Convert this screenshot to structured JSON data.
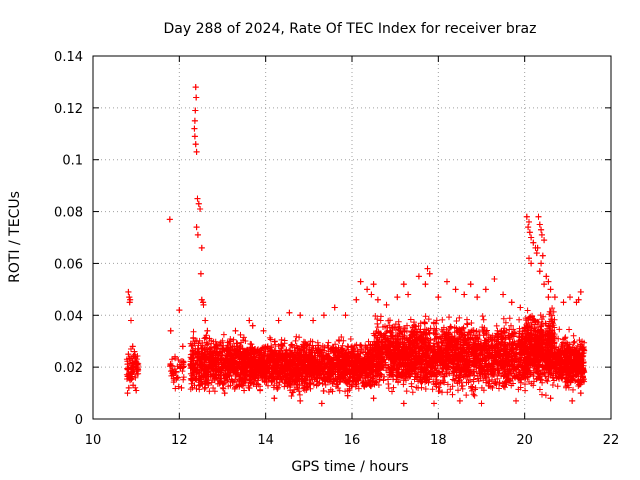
{
  "chart_data": {
    "type": "scatter",
    "title": "Day 288 of 2024, Rate Of TEC Index for receiver braz",
    "xlabel": "GPS time / hours",
    "ylabel": "ROTI / TECUs",
    "xlim": [
      10,
      22
    ],
    "ylim": [
      0,
      0.14
    ],
    "x_ticks": [
      10,
      12,
      14,
      16,
      18,
      20,
      22
    ],
    "x_tick_labels": [
      "10",
      "12",
      "14",
      "16",
      "18",
      "20",
      "22"
    ],
    "y_ticks": [
      0,
      0.02,
      0.04,
      0.06,
      0.08,
      0.1,
      0.12,
      0.14
    ],
    "y_tick_labels": [
      "0",
      "0.02",
      "0.04",
      "0.06",
      "0.08",
      "0.1",
      "0.12",
      "0.14"
    ],
    "grid": true,
    "marker": "+",
    "marker_color": "#ff0000",
    "series": [
      {
        "name": "ROTI",
        "points": [
          [
            10.82,
            0.049
          ],
          [
            10.84,
            0.047
          ],
          [
            10.86,
            0.046
          ],
          [
            10.88,
            0.038
          ],
          [
            10.85,
            0.045
          ],
          [
            10.8,
            0.01
          ],
          [
            10.83,
            0.012
          ],
          [
            10.86,
            0.015
          ],
          [
            10.9,
            0.018
          ],
          [
            10.95,
            0.02
          ],
          [
            11.0,
            0.022
          ],
          [
            10.82,
            0.025
          ],
          [
            10.88,
            0.027
          ],
          [
            10.92,
            0.028
          ],
          [
            10.98,
            0.024
          ],
          [
            11.02,
            0.019
          ],
          [
            10.85,
            0.016
          ],
          [
            10.93,
            0.013
          ],
          [
            11.0,
            0.011
          ],
          [
            10.96,
            0.026
          ],
          [
            11.78,
            0.077
          ],
          [
            11.8,
            0.034
          ],
          [
            11.85,
            0.018
          ],
          [
            11.9,
            0.024
          ],
          [
            11.95,
            0.016
          ],
          [
            12.0,
            0.042
          ],
          [
            12.02,
            0.02
          ],
          [
            12.05,
            0.012
          ],
          [
            12.08,
            0.028
          ],
          [
            12.1,
            0.022
          ],
          [
            12.38,
            0.128
          ],
          [
            12.39,
            0.124
          ],
          [
            12.37,
            0.119
          ],
          [
            12.36,
            0.115
          ],
          [
            12.35,
            0.112
          ],
          [
            12.36,
            0.109
          ],
          [
            12.38,
            0.106
          ],
          [
            12.4,
            0.103
          ],
          [
            12.42,
            0.085
          ],
          [
            12.45,
            0.083
          ],
          [
            12.48,
            0.081
          ],
          [
            12.4,
            0.074
          ],
          [
            12.43,
            0.071
          ],
          [
            12.52,
            0.066
          ],
          [
            12.5,
            0.056
          ],
          [
            12.52,
            0.046
          ],
          [
            12.55,
            0.045
          ],
          [
            12.56,
            0.044
          ],
          [
            12.6,
            0.038
          ],
          [
            12.65,
            0.034
          ],
          [
            12.7,
            0.031
          ],
          [
            13.3,
            0.034
          ],
          [
            13.62,
            0.038
          ],
          [
            13.7,
            0.036
          ],
          [
            13.95,
            0.034
          ],
          [
            14.3,
            0.038
          ],
          [
            14.55,
            0.041
          ],
          [
            14.8,
            0.04
          ],
          [
            15.1,
            0.038
          ],
          [
            15.35,
            0.04
          ],
          [
            15.6,
            0.043
          ],
          [
            15.85,
            0.04
          ],
          [
            16.1,
            0.046
          ],
          [
            16.2,
            0.053
          ],
          [
            16.35,
            0.05
          ],
          [
            16.45,
            0.048
          ],
          [
            16.5,
            0.052
          ],
          [
            16.6,
            0.046
          ],
          [
            16.8,
            0.044
          ],
          [
            17.05,
            0.047
          ],
          [
            17.2,
            0.052
          ],
          [
            17.3,
            0.048
          ],
          [
            17.55,
            0.055
          ],
          [
            17.7,
            0.052
          ],
          [
            17.75,
            0.058
          ],
          [
            17.8,
            0.056
          ],
          [
            18.0,
            0.047
          ],
          [
            18.2,
            0.053
          ],
          [
            18.4,
            0.05
          ],
          [
            18.6,
            0.048
          ],
          [
            18.75,
            0.052
          ],
          [
            18.9,
            0.047
          ],
          [
            19.1,
            0.05
          ],
          [
            19.3,
            0.054
          ],
          [
            19.5,
            0.048
          ],
          [
            19.7,
            0.045
          ],
          [
            19.9,
            0.043
          ],
          [
            20.05,
            0.078
          ],
          [
            20.1,
            0.076
          ],
          [
            20.08,
            0.074
          ],
          [
            20.12,
            0.072
          ],
          [
            20.15,
            0.07
          ],
          [
            20.2,
            0.068
          ],
          [
            20.25,
            0.066
          ],
          [
            20.28,
            0.064
          ],
          [
            20.1,
            0.062
          ],
          [
            20.15,
            0.06
          ],
          [
            20.32,
            0.078
          ],
          [
            20.35,
            0.075
          ],
          [
            20.38,
            0.073
          ],
          [
            20.4,
            0.071
          ],
          [
            20.45,
            0.069
          ],
          [
            20.3,
            0.066
          ],
          [
            20.42,
            0.063
          ],
          [
            20.38,
            0.06
          ],
          [
            20.35,
            0.057
          ],
          [
            20.5,
            0.055
          ],
          [
            20.55,
            0.053
          ],
          [
            20.45,
            0.052
          ],
          [
            20.6,
            0.05
          ],
          [
            20.55,
            0.047
          ],
          [
            20.7,
            0.047
          ],
          [
            20.9,
            0.045
          ],
          [
            21.05,
            0.047
          ],
          [
            21.2,
            0.045
          ],
          [
            21.3,
            0.049
          ],
          [
            21.25,
            0.046
          ],
          [
            13.05,
            0.01
          ],
          [
            13.5,
            0.011
          ],
          [
            14.2,
            0.008
          ],
          [
            14.8,
            0.007
          ],
          [
            15.3,
            0.006
          ],
          [
            15.9,
            0.009
          ],
          [
            16.5,
            0.008
          ],
          [
            17.2,
            0.006
          ],
          [
            17.9,
            0.006
          ],
          [
            18.5,
            0.007
          ],
          [
            19.0,
            0.006
          ],
          [
            19.8,
            0.007
          ],
          [
            20.6,
            0.008
          ],
          [
            21.1,
            0.007
          ],
          [
            21.3,
            0.01
          ],
          [
            12.3,
            0.015
          ],
          [
            12.6,
            0.025
          ],
          [
            12.9,
            0.018
          ],
          [
            13.2,
            0.024
          ],
          [
            13.4,
            0.017
          ],
          [
            13.8,
            0.021
          ],
          [
            14.1,
            0.027
          ],
          [
            14.4,
            0.019
          ],
          [
            14.7,
            0.023
          ],
          [
            15.0,
            0.02
          ],
          [
            15.25,
            0.026
          ],
          [
            15.5,
            0.018
          ],
          [
            15.75,
            0.022
          ],
          [
            16.0,
            0.028
          ],
          [
            16.3,
            0.02
          ],
          [
            16.6,
            0.025
          ],
          [
            16.9,
            0.03
          ],
          [
            17.1,
            0.022
          ],
          [
            17.4,
            0.027
          ],
          [
            17.65,
            0.019
          ],
          [
            17.95,
            0.025
          ],
          [
            18.2,
            0.031
          ],
          [
            18.45,
            0.021
          ],
          [
            18.7,
            0.026
          ],
          [
            19.0,
            0.02
          ],
          [
            19.25,
            0.028
          ],
          [
            19.55,
            0.022
          ],
          [
            19.8,
            0.025
          ],
          [
            20.0,
            0.03
          ],
          [
            20.25,
            0.023
          ],
          [
            20.5,
            0.027
          ],
          [
            20.75,
            0.021
          ],
          [
            21.0,
            0.024
          ],
          [
            21.2,
            0.019
          ],
          [
            21.35,
            0.016
          ]
        ],
        "dense_bands": [
          {
            "x_start": 10.78,
            "x_end": 11.05,
            "y_min": 0.009,
            "y_max": 0.029,
            "count": 70
          },
          {
            "x_start": 11.78,
            "x_end": 12.12,
            "y_min": 0.01,
            "y_max": 0.028,
            "count": 40
          },
          {
            "x_start": 12.25,
            "x_end": 13.6,
            "y_min": 0.008,
            "y_max": 0.035,
            "count": 700
          },
          {
            "x_start": 13.6,
            "x_end": 16.5,
            "y_min": 0.008,
            "y_max": 0.033,
            "count": 1700
          },
          {
            "x_start": 16.5,
            "x_end": 20.0,
            "y_min": 0.007,
            "y_max": 0.042,
            "count": 2200
          },
          {
            "x_start": 20.0,
            "x_end": 20.7,
            "y_min": 0.008,
            "y_max": 0.045,
            "count": 600
          },
          {
            "x_start": 20.7,
            "x_end": 21.38,
            "y_min": 0.009,
            "y_max": 0.035,
            "count": 450
          }
        ]
      }
    ]
  }
}
